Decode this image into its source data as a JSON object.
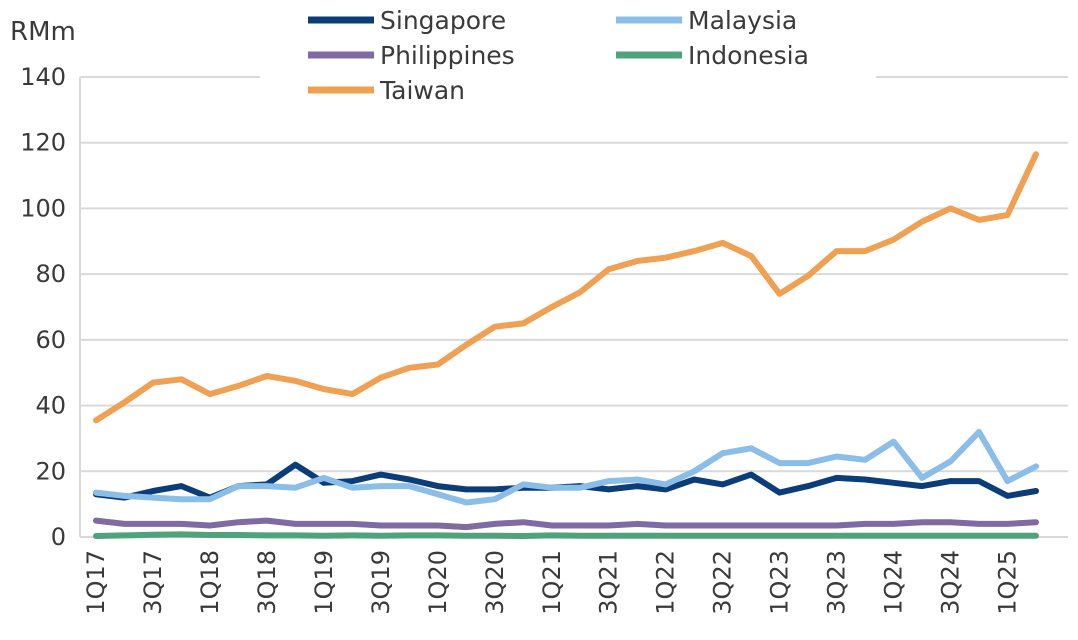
{
  "chart_data": {
    "type": "line",
    "ylabel": "RMm",
    "ylim": [
      0,
      140
    ],
    "yticks": [
      0,
      20,
      40,
      60,
      80,
      100,
      120,
      140
    ],
    "grid": "horizontal",
    "legend": "top",
    "categories": [
      "1Q17",
      "2Q17",
      "3Q17",
      "4Q17",
      "1Q18",
      "2Q18",
      "3Q18",
      "4Q18",
      "1Q19",
      "2Q19",
      "3Q19",
      "4Q19",
      "1Q20",
      "2Q20",
      "3Q20",
      "4Q20",
      "1Q21",
      "2Q21",
      "3Q21",
      "4Q21",
      "1Q22",
      "2Q22",
      "3Q22",
      "4Q22",
      "1Q23",
      "2Q23",
      "3Q23",
      "4Q23",
      "1Q24",
      "2Q24",
      "3Q24",
      "4Q24",
      "1Q25",
      "2Q25"
    ],
    "xtick_labels": [
      "1Q17",
      "",
      "3Q17",
      "",
      "1Q18",
      "",
      "3Q18",
      "",
      "1Q19",
      "",
      "3Q19",
      "",
      "1Q20",
      "",
      "3Q20",
      "",
      "1Q21",
      "",
      "3Q21",
      "",
      "1Q22",
      "",
      "3Q22",
      "",
      "1Q23",
      "",
      "3Q23",
      "",
      "1Q24",
      "",
      "3Q24",
      "",
      "1Q25",
      ""
    ],
    "series": [
      {
        "name": "Singapore",
        "color": "#0b3d78",
        "values": [
          13,
          12,
          14,
          15.5,
          12,
          15.5,
          16,
          22,
          16.5,
          17,
          19,
          17.5,
          15.5,
          14.5,
          14.5,
          15,
          15,
          15.5,
          14.5,
          15.5,
          14.5,
          17.5,
          16,
          19,
          13.5,
          15.5,
          18,
          17.5,
          16.5,
          15.5,
          17,
          17,
          12.5,
          14
        ]
      },
      {
        "name": "Malaysia",
        "color": "#8abde8",
        "values": [
          13.5,
          12.5,
          12,
          11.5,
          11.5,
          15.5,
          15.5,
          15,
          18,
          15,
          15.5,
          15.5,
          13,
          10.5,
          11.5,
          16,
          15,
          15,
          17,
          17.5,
          16,
          20,
          25.5,
          27,
          22.5,
          22.5,
          24.5,
          23.5,
          29,
          18,
          23,
          32,
          17,
          21.5
        ]
      },
      {
        "name": "Philippines",
        "color": "#7f6aa3",
        "values": [
          5,
          4,
          4,
          4,
          3.5,
          4.5,
          5,
          4,
          4,
          4,
          3.5,
          3.5,
          3.5,
          3,
          4,
          4.5,
          3.5,
          3.5,
          3.5,
          4,
          3.5,
          3.5,
          3.5,
          3.5,
          3.5,
          3.5,
          3.5,
          4,
          4,
          4.5,
          4.5,
          4,
          4,
          4.5
        ]
      },
      {
        "name": "Indonesia",
        "color": "#4ea27c",
        "values": [
          0.3,
          0.5,
          0.7,
          0.8,
          0.6,
          0.6,
          0.5,
          0.5,
          0.4,
          0.5,
          0.4,
          0.5,
          0.5,
          0.4,
          0.4,
          0.3,
          0.5,
          0.4,
          0.4,
          0.4,
          0.4,
          0.4,
          0.4,
          0.4,
          0.4,
          0.4,
          0.4,
          0.4,
          0.4,
          0.4,
          0.4,
          0.4,
          0.4,
          0.4
        ]
      },
      {
        "name": "Taiwan",
        "color": "#f0a052",
        "values": [
          35.5,
          41,
          47,
          48,
          43.5,
          46,
          49,
          47.5,
          45,
          43.5,
          48.5,
          51.5,
          52.5,
          58.5,
          64,
          65,
          70,
          74.5,
          81.5,
          84,
          85,
          87,
          89.5,
          85.5,
          74,
          79.5,
          87,
          87,
          90.5,
          96,
          100,
          96.5,
          98,
          116.5
        ]
      }
    ]
  }
}
